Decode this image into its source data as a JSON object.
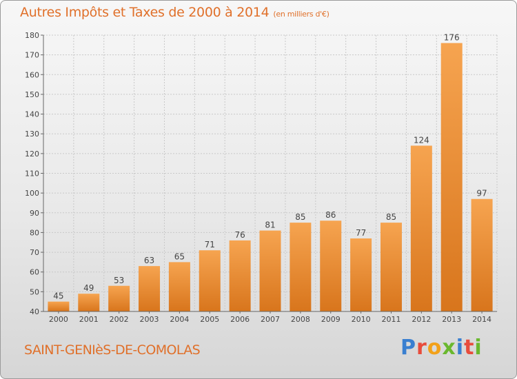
{
  "header": {
    "title": "Autres Impôts et Taxes de 2000 à 2014",
    "subtitle": "(en milliers d'€)"
  },
  "footer": {
    "town": "SAINT-GENIèS-DE-COMOLAS",
    "logo_text": "Proxiti",
    "logo_colors": [
      "#3a7fd0",
      "#e84c3c",
      "#f2a11a",
      "#6ab82e",
      "#3a7fd0",
      "#e84c3c",
      "#6ab82e"
    ]
  },
  "colors": {
    "accent": "#e0702a",
    "bar_light": "#f6a34e",
    "bar_dark": "#d9781f",
    "grid": "#c8c8c8"
  },
  "chart_data": {
    "type": "bar",
    "categories": [
      "2000",
      "2001",
      "2002",
      "2003",
      "2004",
      "2005",
      "2006",
      "2007",
      "2008",
      "2009",
      "2010",
      "2011",
      "2012",
      "2013",
      "2014"
    ],
    "values": [
      45,
      49,
      53,
      63,
      65,
      71,
      76,
      81,
      85,
      86,
      77,
      85,
      124,
      176,
      97
    ],
    "ylim": [
      40,
      180
    ],
    "yticks": [
      40,
      50,
      60,
      70,
      80,
      90,
      100,
      110,
      120,
      130,
      140,
      150,
      160,
      170,
      180
    ],
    "grid": true,
    "data_labels": true
  }
}
